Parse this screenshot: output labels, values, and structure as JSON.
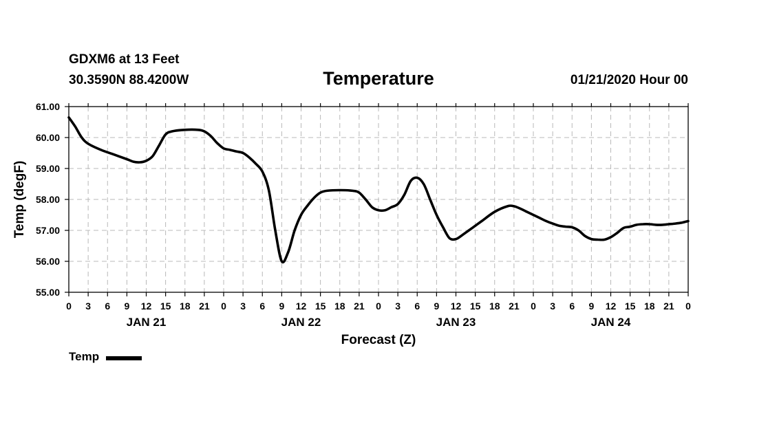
{
  "header": {
    "station": "GDXM6 at 13 Feet",
    "coords": "30.3590N 88.4200W",
    "date": "01/21/2020 Hour 00"
  },
  "chart_data": {
    "type": "line",
    "title": "Temperature",
    "xlabel": "Forecast (Z)",
    "ylabel": "Temp (degF)",
    "xlim": [
      0,
      96
    ],
    "ylim": [
      55.0,
      61.0
    ],
    "y_ticks": [
      "55.00",
      "56.00",
      "57.00",
      "58.00",
      "59.00",
      "60.00",
      "61.00"
    ],
    "y_tick_values": [
      55,
      56,
      57,
      58,
      59,
      60,
      61
    ],
    "x_ticks": [
      "0",
      "3",
      "6",
      "9",
      "12",
      "15",
      "18",
      "21",
      "0",
      "3",
      "6",
      "9",
      "12",
      "15",
      "18",
      "21",
      "0",
      "3",
      "6",
      "9",
      "12",
      "15",
      "18",
      "21",
      "0",
      "3",
      "6",
      "9",
      "12",
      "15",
      "18",
      "21",
      "0"
    ],
    "x_tick_hours": [
      0,
      3,
      6,
      9,
      12,
      15,
      18,
      21,
      24,
      27,
      30,
      33,
      36,
      39,
      42,
      45,
      48,
      51,
      54,
      57,
      60,
      63,
      66,
      69,
      72,
      75,
      78,
      81,
      84,
      87,
      90,
      93,
      96
    ],
    "day_labels": [
      "JAN 21",
      "JAN 22",
      "JAN 23",
      "JAN 24"
    ],
    "day_label_hours": [
      12,
      36,
      60,
      84
    ],
    "grid": true,
    "legend_position": "bottom-left",
    "series": [
      {
        "name": "Temp",
        "color": "#000000",
        "x": [
          0,
          1,
          2,
          3,
          5,
          7,
          9,
          10,
          11,
          12,
          13,
          14,
          15,
          16,
          18,
          20,
          21,
          22,
          23,
          24,
          25,
          26,
          27,
          28,
          29,
          30,
          31,
          32,
          33,
          34,
          35,
          36,
          37,
          38,
          39,
          40,
          42,
          44,
          45,
          46,
          47,
          48,
          49,
          50,
          51,
          52,
          53,
          54,
          55,
          56,
          57,
          58,
          59,
          60,
          61,
          62,
          63,
          64,
          66,
          68,
          69,
          70,
          71,
          72,
          73,
          74,
          75,
          76,
          77,
          78,
          79,
          80,
          81,
          82,
          83,
          84,
          85,
          86,
          87,
          88,
          89,
          90,
          91,
          92,
          93,
          94,
          95,
          96
        ],
        "values": [
          60.65,
          60.35,
          60.0,
          59.8,
          59.6,
          59.45,
          59.3,
          59.22,
          59.2,
          59.25,
          59.4,
          59.75,
          60.1,
          60.2,
          60.25,
          60.25,
          60.2,
          60.05,
          59.82,
          59.65,
          59.6,
          59.55,
          59.5,
          59.35,
          59.15,
          58.9,
          58.3,
          57.0,
          56.0,
          56.3,
          57.0,
          57.5,
          57.8,
          58.05,
          58.22,
          58.28,
          58.3,
          58.28,
          58.22,
          58.0,
          57.75,
          57.65,
          57.65,
          57.75,
          57.85,
          58.15,
          58.6,
          58.7,
          58.5,
          58.0,
          57.5,
          57.1,
          56.75,
          56.72,
          56.85,
          57.0,
          57.15,
          57.3,
          57.6,
          57.78,
          57.78,
          57.7,
          57.6,
          57.5,
          57.4,
          57.3,
          57.22,
          57.15,
          57.12,
          57.1,
          57.0,
          56.82,
          56.72,
          56.7,
          56.7,
          56.78,
          56.92,
          57.08,
          57.12,
          57.18,
          57.2,
          57.2,
          57.18,
          57.18,
          57.2,
          57.22,
          57.25,
          57.3
        ]
      }
    ]
  }
}
